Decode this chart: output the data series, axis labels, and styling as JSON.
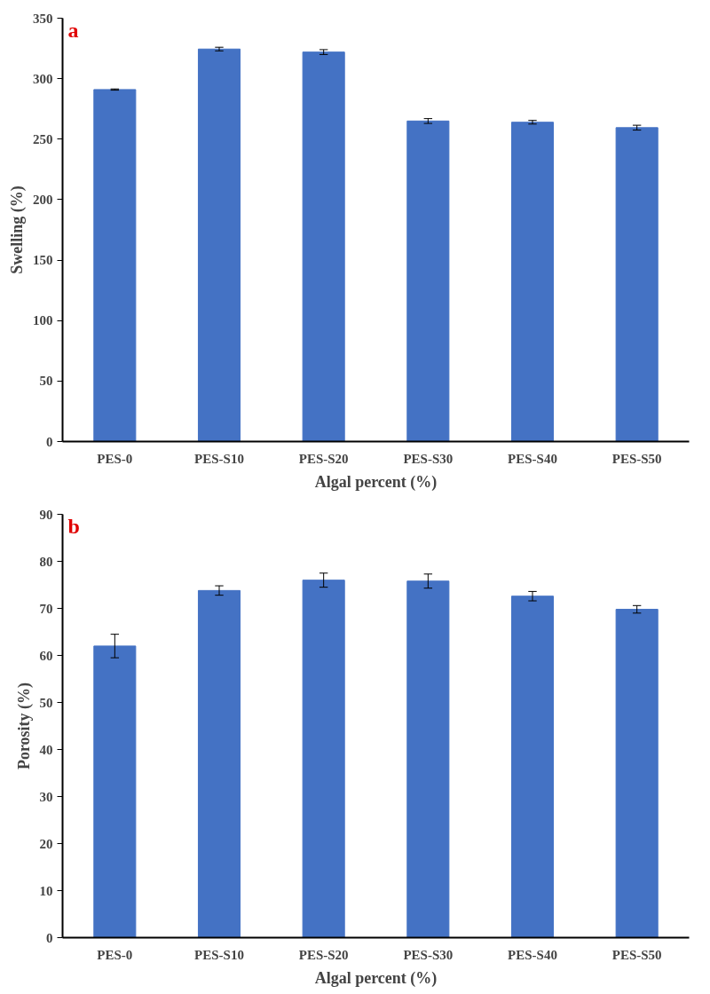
{
  "chart_data": [
    {
      "type": "bar",
      "categories": [
        "PES-0",
        "PES-S10",
        "PES-S20",
        "PES-S30",
        "PES-S40",
        "PES-S50"
      ],
      "values": [
        291,
        324.5,
        322,
        265,
        264,
        259.5
      ],
      "errors": [
        0.5,
        1.5,
        2,
        2,
        1.5,
        2
      ],
      "color": "#4472c4",
      "xlabel": "Algal percent (%)",
      "ylabel": "Swelling (%)",
      "ylim": [
        0,
        350
      ],
      "yticks": [
        0,
        50,
        100,
        150,
        200,
        250,
        300,
        350
      ],
      "grid": false,
      "annotations": [
        "a"
      ]
    },
    {
      "type": "bar",
      "categories": [
        "PES-0",
        "PES-S10",
        "PES-S20",
        "PES-S30",
        "PES-S40",
        "PES-S50"
      ],
      "values": [
        62,
        73.8,
        76,
        75.8,
        72.6,
        69.8
      ],
      "errors": [
        2.5,
        1,
        1.5,
        1.5,
        1,
        0.8
      ],
      "color": "#4472c4",
      "xlabel": "Algal percent (%)",
      "ylabel": "Porosity (%)",
      "ylim": [
        0,
        90
      ],
      "yticks": [
        0,
        10,
        20,
        30,
        40,
        50,
        60,
        70,
        80,
        90
      ],
      "grid": false,
      "annotations": [
        "b"
      ]
    }
  ]
}
